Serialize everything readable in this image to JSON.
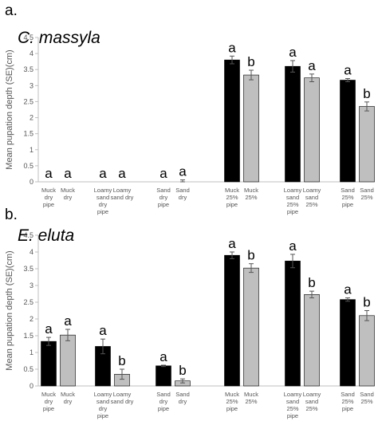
{
  "ylabel": "Mean pupation depth (SE)(cm)",
  "colors": {
    "pipe": "#000000",
    "no_pipe": "#bfbfbf",
    "error": "#555555",
    "axis": "#bfbfbf"
  },
  "chart_data": [
    {
      "type": "bar",
      "panel_label": "a.",
      "title": "C. massyla",
      "ylabel": "Mean pupation depth (SE)(cm)",
      "ylim": [
        0,
        4.5
      ],
      "yticks": [
        "0",
        "0.5",
        "1",
        "1.5",
        "2",
        "2.5",
        "3",
        "3.5",
        "4",
        "4.5"
      ],
      "grid": false,
      "categories": [
        [
          "Muck",
          "dry",
          "pipe"
        ],
        [
          "Muck",
          "dry"
        ],
        [
          "Loamy",
          "sand",
          "dry",
          "pipe"
        ],
        [
          "Loamy",
          "sand dry"
        ],
        [
          "Sand",
          "dry",
          "pipe"
        ],
        [
          "Sand",
          "dry"
        ],
        [
          "Muck",
          "25%",
          "pipe"
        ],
        [
          "Muck",
          "25%"
        ],
        [
          "Loamy",
          "sand",
          "25%",
          "pipe"
        ],
        [
          "Loamy",
          "sand",
          "25%"
        ],
        [
          "Sand",
          "25%",
          "pipe"
        ],
        [
          "Sand",
          "25%"
        ]
      ],
      "values": [
        0,
        0,
        0,
        0,
        0,
        0,
        3.8,
        3.33,
        3.6,
        3.24,
        3.17,
        2.35
      ],
      "errors": [
        0,
        0,
        0,
        0,
        0,
        0.06,
        0.12,
        0.15,
        0.18,
        0.12,
        0.05,
        0.14
      ],
      "pipe": [
        true,
        false,
        true,
        false,
        true,
        false,
        true,
        false,
        true,
        false,
        true,
        false
      ],
      "letters": [
        "a",
        "a",
        "a",
        "a",
        "a",
        "a",
        "a",
        "b",
        "a",
        "a",
        "a",
        "b"
      ]
    },
    {
      "type": "bar",
      "panel_label": "b.",
      "title": "E. eluta",
      "ylabel": "Mean pupation depth (SE)(cm)",
      "ylim": [
        0,
        4.5
      ],
      "yticks": [
        "0",
        "0.5",
        "1",
        "1.5",
        "2",
        "2.5",
        "3",
        "3.5",
        "4",
        "4.5"
      ],
      "grid": false,
      "categories": [
        [
          "Muck",
          "dry",
          "pipe"
        ],
        [
          "Muck",
          "dry"
        ],
        [
          "Loamy",
          "sand",
          "dry",
          "pipe"
        ],
        [
          "Loamy",
          "sand dry"
        ],
        [
          "Sand",
          "dry",
          "pipe"
        ],
        [
          "Sand",
          "dry"
        ],
        [
          "Muck",
          "25%",
          "pipe"
        ],
        [
          "Muck",
          "25%"
        ],
        [
          "Loamy",
          "sand",
          "25%",
          "pipe"
        ],
        [
          "Loamy",
          "sand",
          "25%"
        ],
        [
          "Sand",
          "25%",
          "pipe"
        ],
        [
          "Sand",
          "25%"
        ]
      ],
      "values": [
        1.33,
        1.52,
        1.18,
        0.35,
        0.6,
        0.15,
        3.9,
        3.52,
        3.73,
        2.73,
        2.58,
        2.1
      ],
      "errors": [
        0.12,
        0.17,
        0.22,
        0.15,
        0.02,
        0.06,
        0.1,
        0.13,
        0.2,
        0.1,
        0.05,
        0.15
      ],
      "pipe": [
        true,
        false,
        true,
        false,
        true,
        false,
        true,
        false,
        true,
        false,
        true,
        false
      ],
      "letters": [
        "a",
        "a",
        "a",
        "b",
        "a",
        "b",
        "a",
        "b",
        "a",
        "b",
        "a",
        "b"
      ]
    }
  ]
}
